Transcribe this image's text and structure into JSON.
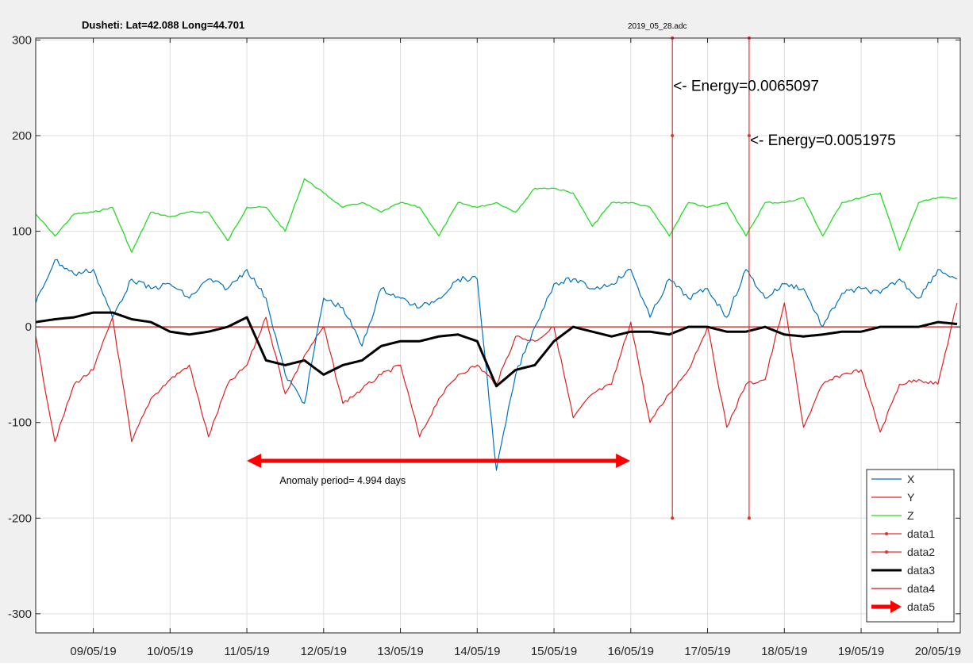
{
  "header": {
    "title": "Dusheti: Lat=42.088 Long=44.701",
    "filename": "2019_05_28.adc"
  },
  "chart_data": {
    "type": "line",
    "title": "Dusheti: Lat=42.088 Long=44.701",
    "subtitle": "2019_05_28.adc",
    "xlabel": "",
    "ylabel": "",
    "xlim": [
      "08/05/19 06:00",
      "20/05/19 07:00"
    ],
    "ylim": [
      -320,
      302
    ],
    "yticks": [
      -300,
      -200,
      -100,
      0,
      100,
      200,
      300
    ],
    "ytick_labels": [
      "-300",
      "-200",
      "-100",
      "0",
      "100",
      "200",
      "300"
    ],
    "xticks": [
      "09/05/19",
      "10/05/19",
      "11/05/19",
      "12/05/19",
      "13/05/19",
      "14/05/19",
      "15/05/19",
      "16/05/19",
      "17/05/19",
      "18/05/19",
      "19/05/19",
      "20/05/19"
    ],
    "grid": true,
    "legend_position": "bottom-right",
    "colors": {
      "X": "#0072bd",
      "Y": "#e02020",
      "Z": "#22dd22",
      "data1": "#e03030",
      "data2": "#e03030",
      "data3": "#000000",
      "data4": "#c81818",
      "data5": "#ff0000"
    },
    "series": [
      {
        "name": "X",
        "x": [
          "08/05/19 06:00",
          "08/05/19 12:00",
          "08/05/19 18:00",
          "09/05/19 00:00",
          "09/05/19 06:00",
          "09/05/19 12:00",
          "09/05/19 18:00",
          "10/05/19 00:00",
          "10/05/19 06:00",
          "10/05/19 12:00",
          "10/05/19 18:00",
          "11/05/19 00:00",
          "11/05/19 06:00",
          "11/05/19 12:00",
          "11/05/19 18:00",
          "12/05/19 00:00",
          "12/05/19 06:00",
          "12/05/19 12:00",
          "12/05/19 18:00",
          "13/05/19 00:00",
          "13/05/19 06:00",
          "13/05/19 12:00",
          "13/05/19 18:00",
          "14/05/19 00:00",
          "14/05/19 06:00",
          "14/05/19 12:00",
          "14/05/19 18:00",
          "15/05/19 00:00",
          "15/05/19 06:00",
          "15/05/19 12:00",
          "15/05/19 18:00",
          "16/05/19 00:00",
          "16/05/19 06:00",
          "16/05/19 12:00",
          "16/05/19 18:00",
          "17/05/19 00:00",
          "17/05/19 06:00",
          "17/05/19 12:00",
          "17/05/19 18:00",
          "18/05/19 00:00",
          "18/05/19 06:00",
          "18/05/19 12:00",
          "18/05/19 18:00",
          "19/05/19 00:00",
          "19/05/19 06:00",
          "19/05/19 12:00",
          "19/05/19 18:00",
          "20/05/19 00:00",
          "20/05/19 06:00"
        ],
        "values": [
          25,
          70,
          55,
          60,
          10,
          50,
          40,
          45,
          30,
          50,
          40,
          60,
          30,
          -50,
          -80,
          30,
          20,
          -20,
          40,
          30,
          20,
          30,
          50,
          50,
          -150,
          -50,
          0,
          45,
          50,
          40,
          45,
          60,
          10,
          50,
          30,
          40,
          10,
          60,
          30,
          45,
          40,
          0,
          35,
          40,
          35,
          50,
          30,
          60,
          50
        ]
      },
      {
        "name": "Y",
        "x": [
          "08/05/19 06:00",
          "08/05/19 12:00",
          "08/05/19 18:00",
          "09/05/19 00:00",
          "09/05/19 06:00",
          "09/05/19 12:00",
          "09/05/19 18:00",
          "10/05/19 00:00",
          "10/05/19 06:00",
          "10/05/19 12:00",
          "10/05/19 18:00",
          "11/05/19 00:00",
          "11/05/19 06:00",
          "11/05/19 12:00",
          "11/05/19 18:00",
          "12/05/19 00:00",
          "12/05/19 06:00",
          "12/05/19 12:00",
          "12/05/19 18:00",
          "13/05/19 00:00",
          "13/05/19 06:00",
          "13/05/19 12:00",
          "13/05/19 18:00",
          "14/05/19 00:00",
          "14/05/19 06:00",
          "14/05/19 12:00",
          "14/05/19 18:00",
          "15/05/19 00:00",
          "15/05/19 06:00",
          "15/05/19 12:00",
          "15/05/19 18:00",
          "16/05/19 00:00",
          "16/05/19 06:00",
          "16/05/19 12:00",
          "16/05/19 18:00",
          "17/05/19 00:00",
          "17/05/19 06:00",
          "17/05/19 12:00",
          "17/05/19 18:00",
          "18/05/19 00:00",
          "18/05/19 06:00",
          "18/05/19 12:00",
          "18/05/19 18:00",
          "19/05/19 00:00",
          "19/05/19 06:00",
          "19/05/19 12:00",
          "19/05/19 18:00",
          "20/05/19 00:00",
          "20/05/19 06:00"
        ],
        "values": [
          -10,
          -120,
          -60,
          -45,
          10,
          -120,
          -75,
          -55,
          -40,
          -115,
          -60,
          -40,
          10,
          -70,
          -30,
          0,
          -80,
          -65,
          -50,
          -40,
          -115,
          -75,
          -50,
          -40,
          -60,
          -10,
          -15,
          0,
          -95,
          -70,
          -60,
          5,
          -100,
          -70,
          -45,
          0,
          -105,
          -60,
          -55,
          25,
          -105,
          -60,
          -50,
          -45,
          -110,
          -60,
          -55,
          -60,
          25
        ]
      },
      {
        "name": "Z",
        "x": [
          "08/05/19 06:00",
          "08/05/19 12:00",
          "08/05/19 18:00",
          "09/05/19 00:00",
          "09/05/19 06:00",
          "09/05/19 12:00",
          "09/05/19 18:00",
          "10/05/19 00:00",
          "10/05/19 06:00",
          "10/05/19 12:00",
          "10/05/19 18:00",
          "11/05/19 00:00",
          "11/05/19 06:00",
          "11/05/19 12:00",
          "11/05/19 18:00",
          "12/05/19 00:00",
          "12/05/19 06:00",
          "12/05/19 12:00",
          "12/05/19 18:00",
          "13/05/19 00:00",
          "13/05/19 06:00",
          "13/05/19 12:00",
          "13/05/19 18:00",
          "14/05/19 00:00",
          "14/05/19 06:00",
          "14/05/19 12:00",
          "14/05/19 18:00",
          "15/05/19 00:00",
          "15/05/19 06:00",
          "15/05/19 12:00",
          "15/05/19 18:00",
          "16/05/19 00:00",
          "16/05/19 06:00",
          "16/05/19 12:00",
          "16/05/19 18:00",
          "17/05/19 00:00",
          "17/05/19 06:00",
          "17/05/19 12:00",
          "17/05/19 18:00",
          "18/05/19 00:00",
          "18/05/19 06:00",
          "18/05/19 12:00",
          "18/05/19 18:00",
          "19/05/19 00:00",
          "19/05/19 06:00",
          "19/05/19 12:00",
          "19/05/19 18:00",
          "20/05/19 00:00",
          "20/05/19 06:00"
        ],
        "values": [
          118,
          95,
          118,
          120,
          125,
          78,
          120,
          115,
          120,
          120,
          90,
          125,
          125,
          100,
          155,
          140,
          125,
          130,
          120,
          130,
          125,
          95,
          130,
          125,
          130,
          120,
          145,
          145,
          140,
          105,
          130,
          130,
          125,
          95,
          130,
          125,
          130,
          95,
          130,
          130,
          135,
          95,
          130,
          135,
          140,
          80,
          130,
          135,
          135
        ]
      },
      {
        "name": "data3",
        "x": [
          "08/05/19 06:00",
          "08/05/19 12:00",
          "08/05/19 18:00",
          "09/05/19 00:00",
          "09/05/19 06:00",
          "09/05/19 12:00",
          "09/05/19 18:00",
          "10/05/19 00:00",
          "10/05/19 06:00",
          "10/05/19 12:00",
          "10/05/19 18:00",
          "11/05/19 00:00",
          "11/05/19 06:00",
          "11/05/19 12:00",
          "11/05/19 18:00",
          "12/05/19 00:00",
          "12/05/19 06:00",
          "12/05/19 12:00",
          "12/05/19 18:00",
          "13/05/19 00:00",
          "13/05/19 06:00",
          "13/05/19 12:00",
          "13/05/19 18:00",
          "14/05/19 00:00",
          "14/05/19 06:00",
          "14/05/19 12:00",
          "14/05/19 18:00",
          "15/05/19 00:00",
          "15/05/19 06:00",
          "15/05/19 12:00",
          "15/05/19 18:00",
          "16/05/19 00:00",
          "16/05/19 06:00",
          "16/05/19 12:00",
          "16/05/19 18:00",
          "17/05/19 00:00",
          "17/05/19 06:00",
          "17/05/19 12:00",
          "17/05/19 18:00",
          "18/05/19 00:00",
          "18/05/19 06:00",
          "18/05/19 12:00",
          "18/05/19 18:00",
          "19/05/19 00:00",
          "19/05/19 06:00",
          "19/05/19 12:00",
          "19/05/19 18:00",
          "20/05/19 00:00",
          "20/05/19 06:00"
        ],
        "values": [
          5,
          8,
          10,
          15,
          15,
          8,
          5,
          -5,
          -8,
          -5,
          0,
          10,
          -35,
          -40,
          -35,
          -50,
          -40,
          -35,
          -20,
          -15,
          -15,
          -10,
          -8,
          -15,
          -62,
          -45,
          -40,
          -15,
          0,
          -5,
          -10,
          -5,
          -5,
          -8,
          0,
          0,
          -5,
          -5,
          0,
          -8,
          -10,
          -8,
          -5,
          -5,
          0,
          0,
          0,
          5,
          3
        ]
      },
      {
        "name": "data1",
        "x": [
          "16/05/19 13:00",
          "16/05/19 13:00",
          "16/05/19 13:00"
        ],
        "values": [
          -200,
          200,
          302
        ]
      },
      {
        "name": "data2",
        "x": [
          "17/05/19 13:00",
          "17/05/19 13:00",
          "17/05/19 13:00"
        ],
        "values": [
          -200,
          200,
          302
        ]
      },
      {
        "name": "data4",
        "x": [
          "08/05/19 06:00",
          "20/05/19 07:00"
        ],
        "values": [
          0,
          0
        ]
      },
      {
        "name": "data5",
        "x": [
          "11/05/19 00:00",
          "15/05/19 23:50"
        ],
        "values": [
          -140,
          -140
        ]
      }
    ],
    "annotations": [
      {
        "text": "<- Energy=0.0065097",
        "x": "16/05/19 13:00",
        "y": 252
      },
      {
        "text": "<- Energy=0.0051975",
        "x": "17/05/19 13:00",
        "y": 195
      },
      {
        "text": "Anomaly period= 4.994 days",
        "x": "11/05/19 10:00",
        "y": -160
      }
    ],
    "legend": [
      "X",
      "Y",
      "Z",
      "data1",
      "data2",
      "data3",
      "data4",
      "data5"
    ]
  }
}
